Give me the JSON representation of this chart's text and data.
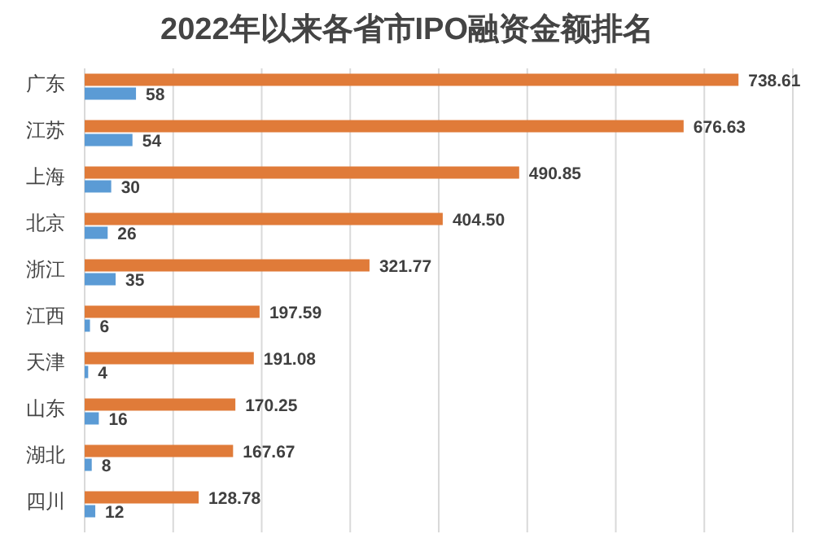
{
  "chart_data": {
    "type": "bar",
    "orientation": "horizontal",
    "title": "2022年以来各省市IPO融资金额排名",
    "categories": [
      "广东",
      "江苏",
      "上海",
      "北京",
      "浙江",
      "江西",
      "天津",
      "山东",
      "湖北",
      "四川"
    ],
    "series": [
      {
        "color": "#e07b39",
        "values": [
          738.61,
          676.63,
          490.85,
          404.5,
          321.77,
          197.59,
          191.08,
          170.25,
          167.67,
          128.78
        ],
        "value_labels": [
          "738.61",
          "676.63",
          "490.85",
          "404.50",
          "321.77",
          "197.59",
          "191.08",
          "170.25",
          "167.67",
          "128.78"
        ]
      },
      {
        "color": "#5b9bd5",
        "values": [
          58,
          54,
          30,
          26,
          35,
          6,
          4,
          16,
          8,
          12
        ],
        "value_labels": [
          "58",
          "54",
          "30",
          "26",
          "35",
          "6",
          "4",
          "16",
          "8",
          "12"
        ]
      }
    ],
    "xlim": [
      0,
      800
    ],
    "xticks": [
      {
        "value": 0,
        "label": null
      },
      {
        "value": 100,
        "label": null
      },
      {
        "value": 200,
        "label": null
      },
      {
        "value": 300,
        "label": null
      },
      {
        "value": 400,
        "label": null
      },
      {
        "value": 500,
        "label": null
      },
      {
        "value": 600,
        "label": null
      },
      {
        "value": 700,
        "label": null
      },
      {
        "value": 800,
        "label": null
      }
    ],
    "grid": "x",
    "tick_labels": "y"
  }
}
